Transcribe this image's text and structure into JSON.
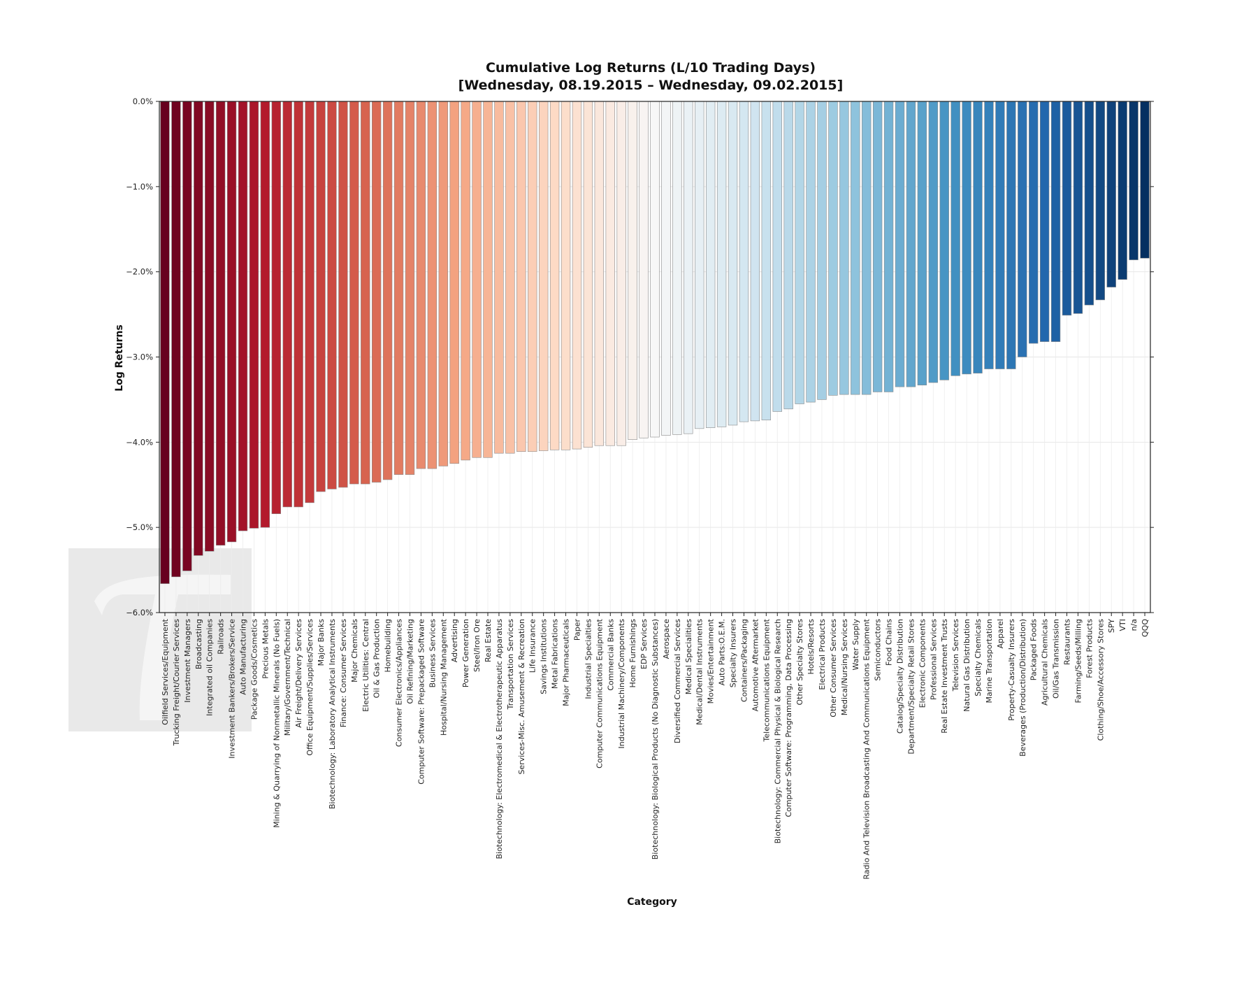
{
  "chart_data": {
    "type": "bar",
    "title_line1": "Cumulative Log Returns (L/10 Trading Days)",
    "title_line2": "[Wednesday, 08.19.2015 – Wednesday, 09.02.2015]",
    "xlabel": "Category",
    "ylabel": "Log Returns",
    "ylim": [
      -6.0,
      0.0
    ],
    "yticks": [
      0.0,
      -1.0,
      -2.0,
      -3.0,
      -4.0,
      -5.0,
      -6.0
    ],
    "ytick_labels": [
      "0.0%",
      "−1.0%",
      "−2.0%",
      "−3.0%",
      "−4.0%",
      "−5.0%",
      "−6.0%"
    ],
    "grid": true,
    "colormap": "red-to-blue diverging",
    "color_low": "#67001f",
    "color_mid": "#f7f7f7",
    "color_high": "#053061",
    "categories": [
      "Oilfield Services/Equipment",
      "Trucking Freight/Courier Services",
      "Investment Managers",
      "Broadcasting",
      "Integrated oil Companies",
      "Railroads",
      "Investment Bankers/Brokers/Service",
      "Auto Manufacturing",
      "Package Goods/Cosmetics",
      "Precious Metals",
      "Mining & Quarrying of Nonmetallic Minerals (No Fuels)",
      "Military/Government/Technical",
      "Air Freight/Delivery Services",
      "Office Equipment/Supplies/Services",
      "Major Banks",
      "Biotechnology: Laboratory Analytical Instruments",
      "Finance: Consumer Services",
      "Major Chemicals",
      "Electric Utilities: Central",
      "Oil & Gas Production",
      "Homebuilding",
      "Consumer Electronics/Appliances",
      "Oil Refining/Marketing",
      "Computer Software: Prepackaged Software",
      "Business Services",
      "Hospital/Nursing Management",
      "Advertising",
      "Power Generation",
      "Steel/Iron Ore",
      "Real Estate",
      "Biotechnology: Electromedical & Electrotherapeutic Apparatus",
      "Transportation Services",
      "Services-Misc. Amusement & Recreation",
      "Life Insurance",
      "Savings Institutions",
      "Metal Fabrications",
      "Major Pharmaceuticals",
      "Paper",
      "Industrial Specialties",
      "Computer Communications Equipment",
      "Commercial Banks",
      "Industrial Machinery/Components",
      "Home Furnishings",
      "EDP Services",
      "Biotechnology: Biological Products (No Diagnostic Substances)",
      "Aerospace",
      "Diversified Commercial Services",
      "Medical Specialities",
      "Medical/Dental Instruments",
      "Movies/Entertainment",
      "Auto Parts:O.E.M.",
      "Specialty Insurers",
      "Containers/Packaging",
      "Automotive Aftermarket",
      "Telecommunications Equipment",
      "Biotechnology: Commercial Physical & Biological Research",
      "Computer Software: Programming, Data Processing",
      "Other Specialty Stores",
      "Hotels/Resorts",
      "Electrical Products",
      "Other Consumer Services",
      "Medical/Nursing Services",
      "Water Supply",
      "Radio And Television Broadcasting And Communications Equipment",
      "Semiconductors",
      "Food Chains",
      "Catalog/Specialty Distribution",
      "Department/Specialty Retail Stores",
      "Electronic Components",
      "Professional Services",
      "Real Estate Investment Trusts",
      "Television Services",
      "Natural Gas Distribution",
      "Specialty Chemicals",
      "Marine Transportation",
      "Apparel",
      "Property-Casualty Insurers",
      "Beverages (Production/Distribution)",
      "Packaged Foods",
      "Agricultural Chemicals",
      "Oil/Gas Transmission",
      "Restaurants",
      "Farming/Seeds/Milling",
      "Forest Products",
      "Clothing/Shoe/Accessory Stores",
      "SPY",
      "VTI",
      "n/a",
      "QQQ"
    ],
    "values": [
      -5.66,
      -5.58,
      -5.51,
      -5.33,
      -5.28,
      -5.21,
      -5.17,
      -5.04,
      -5.01,
      -5.0,
      -4.84,
      -4.76,
      -4.76,
      -4.71,
      -4.58,
      -4.55,
      -4.53,
      -4.49,
      -4.49,
      -4.47,
      -4.44,
      -4.38,
      -4.38,
      -4.31,
      -4.31,
      -4.28,
      -4.25,
      -4.21,
      -4.18,
      -4.18,
      -4.13,
      -4.13,
      -4.11,
      -4.11,
      -4.1,
      -4.09,
      -4.09,
      -4.08,
      -4.06,
      -4.04,
      -4.04,
      -4.04,
      -3.97,
      -3.95,
      -3.94,
      -3.92,
      -3.91,
      -3.9,
      -3.84,
      -3.83,
      -3.82,
      -3.8,
      -3.76,
      -3.75,
      -3.74,
      -3.64,
      -3.61,
      -3.55,
      -3.53,
      -3.5,
      -3.45,
      -3.44,
      -3.44,
      -3.44,
      -3.41,
      -3.41,
      -3.35,
      -3.35,
      -3.33,
      -3.3,
      -3.27,
      -3.22,
      -3.2,
      -3.19,
      -3.14,
      -3.14,
      -3.14,
      -3.0,
      -2.84,
      -2.82,
      -2.82,
      -2.51,
      -2.49,
      -2.39,
      -2.33,
      -2.18,
      -2.09,
      -1.86,
      -1.84
    ]
  }
}
